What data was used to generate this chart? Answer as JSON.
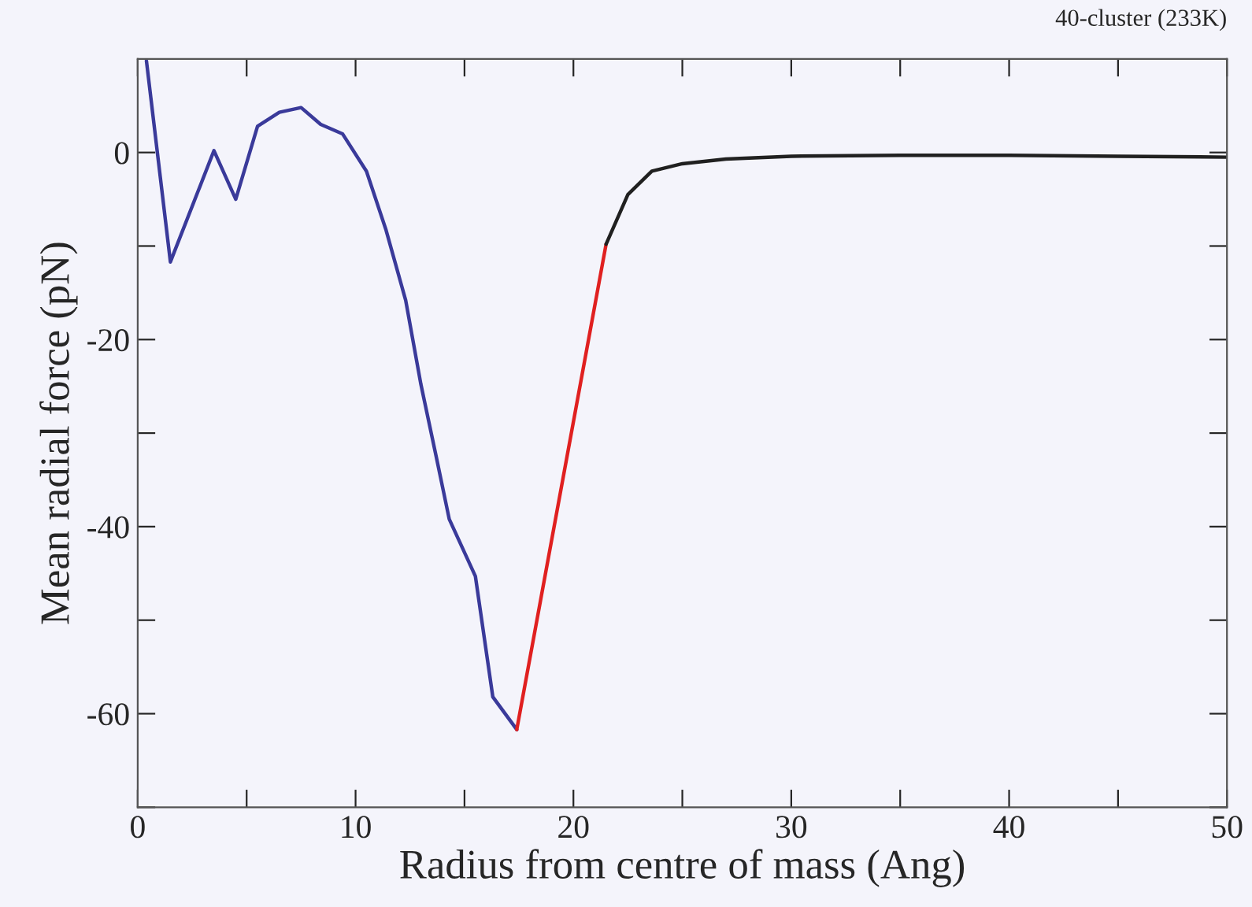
{
  "chart_data": {
    "type": "line",
    "xlabel": "Radius from centre of mass (Ang)",
    "ylabel": "Mean radial force (pN)",
    "annotations": [
      "40-cluster (233K)"
    ],
    "xlim": [
      0,
      50
    ],
    "xticks": [
      0,
      {
        "value": 5,
        "label": null
      },
      10,
      {
        "value": 15,
        "label": null
      },
      20,
      {
        "value": 25,
        "label": null
      },
      30,
      {
        "value": 35,
        "label": null
      },
      40,
      {
        "value": 45,
        "label": null
      },
      50
    ],
    "ylim": [
      -70,
      10
    ],
    "yticks": [
      {
        "value": -70,
        "label": null
      },
      -60,
      {
        "value": -50,
        "label": null
      },
      -40,
      {
        "value": -30,
        "label": null
      },
      -20,
      {
        "value": -10,
        "label": null
      },
      0
    ],
    "grid": false,
    "legend": false,
    "line_style": "solid",
    "marker": "none",
    "series": [
      {
        "color": "#3a3a9a",
        "x": [
          0.4,
          1.5,
          3.5,
          4.5,
          5.5,
          6.5,
          7.5,
          8.4,
          9.4,
          10.5,
          11.4,
          12.3,
          13.0,
          13.7,
          14.3,
          15.5,
          16.3,
          17.4
        ],
        "values": [
          9.8,
          -11.7,
          0.2,
          -5,
          2.8,
          4.3,
          4.8,
          3,
          2,
          -2,
          -8.3,
          -15.8,
          -24.8,
          -32.5,
          -39.2,
          -45.3,
          -58.2,
          -61.7
        ]
      },
      {
        "color": "#e02020",
        "x": [
          17.4,
          21.5
        ],
        "values": [
          -61.7,
          -9.8
        ]
      },
      {
        "color": "#202020",
        "x": [
          21.5,
          22.5,
          23.6,
          25,
          27,
          30,
          35,
          40,
          45,
          50
        ],
        "values": [
          -9.8,
          -4.5,
          -2,
          -1.2,
          -0.7,
          -0.4,
          -0.3,
          -0.3,
          -0.4,
          -0.5
        ]
      }
    ]
  }
}
